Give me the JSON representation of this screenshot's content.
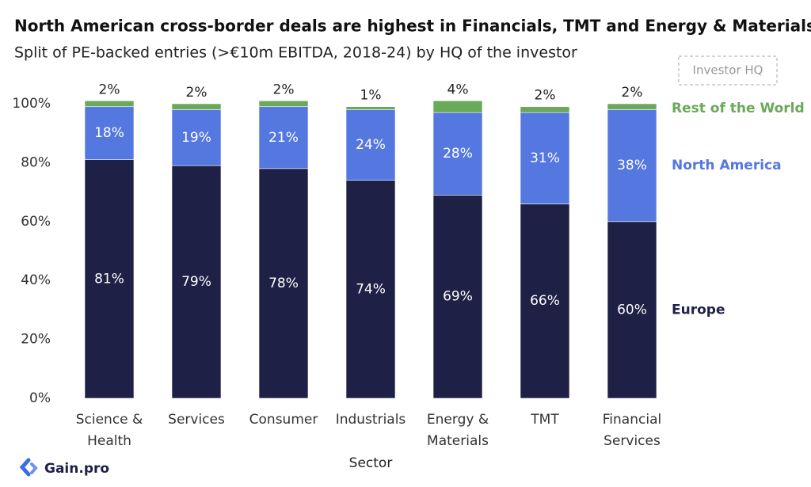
{
  "chart_data": {
    "type": "stacked_bar",
    "title": "North American cross-border deals are highest in Financials, TMT and Energy & Materials sectors",
    "subtitle": "Split of PE-backed entries (>€10m EBITDA, 2018-24) by HQ of the investor",
    "x_label": "Sector",
    "legend_title": "Investor HQ",
    "categories": [
      "Science & Health",
      "Services",
      "Consumer",
      "Industrials",
      "Energy & Materials",
      "TMT",
      "Financial Services"
    ],
    "series": [
      {
        "name": "Europe",
        "color": "#1e2045",
        "values": [
          81,
          79,
          78,
          74,
          69,
          66,
          60
        ],
        "value_labels": [
          "81%",
          "79%",
          "78%",
          "74%",
          "69%",
          "66%",
          "60%"
        ]
      },
      {
        "name": "North America",
        "color": "#5577e0",
        "values": [
          18,
          19,
          21,
          24,
          28,
          31,
          38
        ],
        "value_labels": [
          "18%",
          "19%",
          "21%",
          "24%",
          "28%",
          "31%",
          "38%"
        ]
      },
      {
        "name": "Rest of the World",
        "color": "#6aa85a",
        "values": [
          2,
          2,
          2,
          1,
          4,
          2,
          2
        ],
        "value_labels": [
          "2%",
          "2%",
          "2%",
          "1%",
          "4%",
          "2%",
          "2%"
        ]
      }
    ],
    "ylim": [
      0,
      100
    ],
    "yticks": [
      {
        "value": 0,
        "label": "0%"
      },
      {
        "value": 20,
        "label": "20%"
      },
      {
        "value": 40,
        "label": "40%"
      },
      {
        "value": 60,
        "label": "60%"
      },
      {
        "value": 80,
        "label": "80%"
      },
      {
        "value": 100,
        "label": "100%"
      }
    ],
    "source_logo": "Gain.pro"
  }
}
